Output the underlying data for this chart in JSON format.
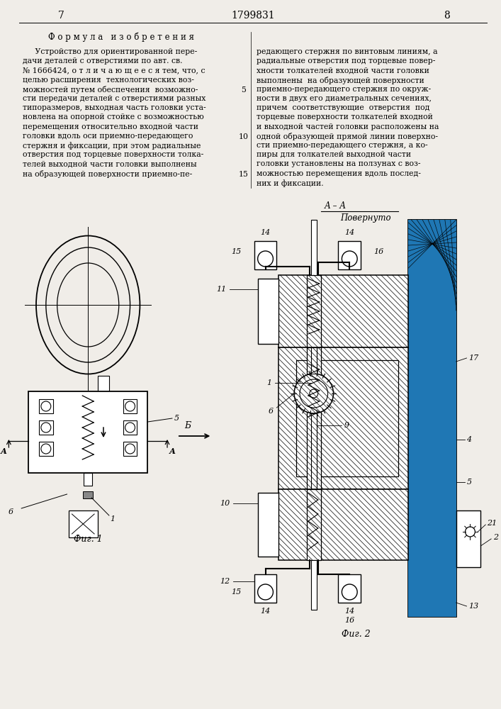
{
  "page_number_left": "7",
  "page_number_center": "1799831",
  "page_number_right": "8",
  "section_title": "Ф о р м у л а   и з о б р е т е н и я",
  "left_text": [
    "     Устройство для ориентированной пере-",
    "дачи деталей с отверстиями по авт. св.",
    "№ 1666424, о т л и ч а ю щ е е с я тем, что, с",
    "целью расширения  технологических воз-",
    "можностей путем обеспечения  возможно-",
    "сти передачи деталей с отверстиями разных",
    "типоразмеров, выходная часть головки уста-",
    "новлена на опорной стойке с возможностью",
    "перемещения относительно входной части",
    "головки вдоль оси приемно-передающего",
    "стержня и фиксации, при этом радиальные",
    "отверстия под торцевые поверхности толка-",
    "телей выходной части головки выполнены",
    "на образующей поверхности приемно-пе-"
  ],
  "line_numbers": [
    "5",
    "10",
    "15"
  ],
  "line_number_rows": [
    4,
    9,
    13
  ],
  "right_text": [
    "редающего стержня по винтовым линиям, а",
    "радиальные отверстия под торцевые повер-",
    "хности толкателей входной части головки",
    "выполнены  на образующей поверхности",
    "приемно-передающего стержня по окруж-",
    "ности в двух его диаметральных сечениях,",
    "причем  соответствующие  отверстия  под",
    "торцевые поверхности толкателей входной",
    "и выходной частей головки расположены на",
    "одной образующей прямой линии поверхно-",
    "сти приемно-передающего стержня, а ко-",
    "пиры для толкателей выходной части",
    "головки установлены на ползунах с воз-",
    "можностью перемещения вдоль послед-",
    "них и фиксации."
  ],
  "fig1_label": "Фиг. 1",
  "fig2_label": "Фиг. 2",
  "aa_label": "А – А",
  "aa_sub": "Повернуто",
  "arrow_b_label": "Б",
  "background_color": "#f0ede8"
}
